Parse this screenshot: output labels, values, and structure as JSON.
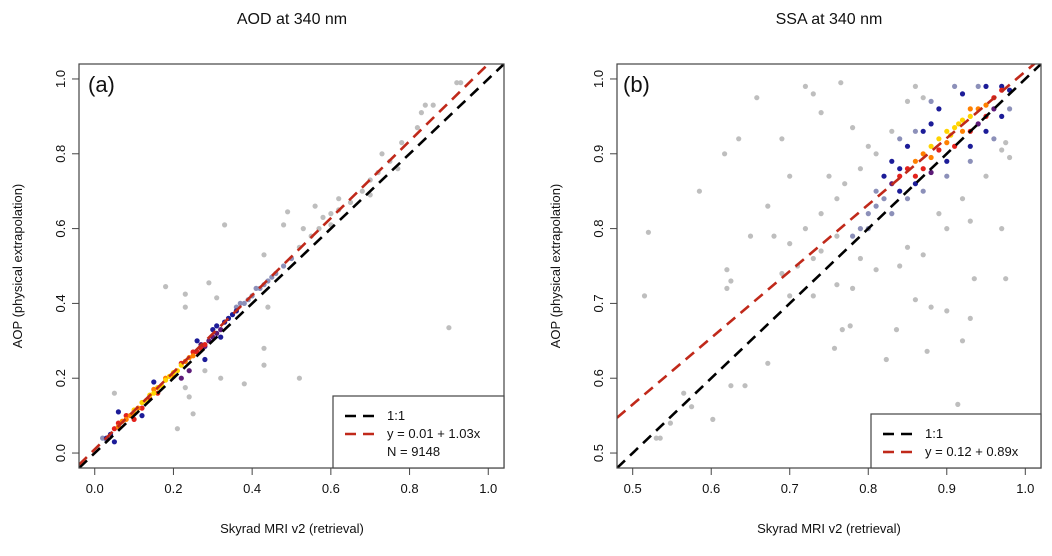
{
  "colors": {
    "density": [
      "#bebebe",
      "#8c90b9",
      "#1c1c98",
      "#5c1a78",
      "#e3211b",
      "#ff8000",
      "#ffd400"
    ],
    "line_1to1": "#000000",
    "line_fit": "#c0291a"
  },
  "chart_data": [
    {
      "type": "scatter",
      "title": "AOD at 340 nm",
      "panel_label": "(a)",
      "xlabel": "Skyrad MRI v2 (retrieval)",
      "ylabel": "AOP (physical extrapolation)",
      "xlim": [
        -0.04,
        1.04
      ],
      "ylim": [
        -0.04,
        1.04
      ],
      "xticks": [
        "0.0",
        "0.2",
        "0.4",
        "0.6",
        "0.8",
        "1.0"
      ],
      "yticks": [
        "0.0",
        "0.2",
        "0.4",
        "0.6",
        "0.8",
        "1.0"
      ],
      "grid": false,
      "legend_position": "bottom-right",
      "lines": [
        {
          "label": "1:1",
          "intercept": 0,
          "slope": 1,
          "color": "#000000"
        },
        {
          "label": "y = 0.01 + 1.03x",
          "intercept": 0.01,
          "slope": 1.03,
          "color": "#c0291a"
        }
      ],
      "legend_note": "N = 9148",
      "points_xy_density": [
        [
          0.52,
          0.55,
          0
        ],
        [
          0.55,
          0.58,
          0
        ],
        [
          0.57,
          0.6,
          0
        ],
        [
          0.58,
          0.63,
          0
        ],
        [
          0.6,
          0.64,
          0
        ],
        [
          0.62,
          0.65,
          0
        ],
        [
          0.65,
          0.67,
          0
        ],
        [
          0.68,
          0.7,
          0
        ],
        [
          0.7,
          0.73,
          0
        ],
        [
          0.72,
          0.75,
          0
        ],
        [
          0.73,
          0.8,
          0
        ],
        [
          0.75,
          0.78,
          0
        ],
        [
          0.7,
          0.69,
          0
        ],
        [
          0.6,
          0.61,
          0
        ],
        [
          0.83,
          0.91,
          0
        ],
        [
          0.84,
          0.93,
          0
        ],
        [
          0.86,
          0.93,
          0
        ],
        [
          0.82,
          0.87,
          0
        ],
        [
          0.78,
          0.83,
          0
        ],
        [
          0.92,
          0.99,
          0
        ],
        [
          0.93,
          0.99,
          0
        ],
        [
          0.9,
          0.335,
          0
        ],
        [
          0.33,
          0.61,
          0
        ],
        [
          0.18,
          0.445,
          0
        ],
        [
          0.29,
          0.455,
          0
        ],
        [
          0.23,
          0.425,
          0
        ],
        [
          0.23,
          0.39,
          0
        ],
        [
          0.31,
          0.415,
          0
        ],
        [
          0.38,
          0.185,
          0
        ],
        [
          0.43,
          0.28,
          0
        ],
        [
          0.43,
          0.235,
          0
        ],
        [
          0.52,
          0.2,
          0
        ],
        [
          0.21,
          0.065,
          0
        ],
        [
          0.25,
          0.105,
          0
        ],
        [
          0.24,
          0.15,
          0
        ],
        [
          0.23,
          0.175,
          0
        ],
        [
          0.32,
          0.2,
          0
        ],
        [
          0.28,
          0.22,
          0
        ],
        [
          0.05,
          0.16,
          0
        ],
        [
          0.44,
          0.39,
          0
        ],
        [
          0.43,
          0.53,
          0
        ],
        [
          0.49,
          0.645,
          0
        ],
        [
          0.48,
          0.61,
          0
        ],
        [
          0.56,
          0.66,
          0
        ],
        [
          0.53,
          0.6,
          0
        ],
        [
          0.62,
          0.68,
          0
        ],
        [
          0.77,
          0.76,
          0
        ],
        [
          0.36,
          0.39,
          1
        ],
        [
          0.38,
          0.4,
          1
        ],
        [
          0.4,
          0.42,
          1
        ],
        [
          0.42,
          0.44,
          1
        ],
        [
          0.44,
          0.46,
          1
        ],
        [
          0.46,
          0.48,
          1
        ],
        [
          0.43,
          0.45,
          1
        ],
        [
          0.39,
          0.41,
          1
        ],
        [
          0.41,
          0.44,
          1
        ],
        [
          0.45,
          0.47,
          1
        ],
        [
          0.48,
          0.5,
          1
        ],
        [
          0.5,
          0.52,
          1
        ],
        [
          0.37,
          0.4,
          1
        ],
        [
          0.02,
          0.04,
          1
        ],
        [
          0.03,
          0.035,
          1
        ],
        [
          0.03,
          0.04,
          2
        ],
        [
          0.04,
          0.05,
          2
        ],
        [
          0.33,
          0.35,
          2
        ],
        [
          0.34,
          0.36,
          2
        ],
        [
          0.3,
          0.33,
          2
        ],
        [
          0.32,
          0.31,
          2
        ],
        [
          0.35,
          0.37,
          2
        ],
        [
          0.26,
          0.3,
          2
        ],
        [
          0.15,
          0.19,
          2
        ],
        [
          0.06,
          0.11,
          2
        ],
        [
          0.12,
          0.1,
          2
        ],
        [
          0.28,
          0.25,
          2
        ],
        [
          0.31,
          0.34,
          2
        ],
        [
          0.36,
          0.38,
          2
        ],
        [
          0.05,
          0.03,
          2
        ],
        [
          0.29,
          0.3,
          3
        ],
        [
          0.3,
          0.31,
          3
        ],
        [
          0.31,
          0.32,
          3
        ],
        [
          0.28,
          0.285,
          3
        ],
        [
          0.32,
          0.33,
          3
        ],
        [
          0.27,
          0.29,
          3
        ],
        [
          0.22,
          0.2,
          3
        ],
        [
          0.24,
          0.22,
          3
        ],
        [
          0.05,
          0.065,
          4
        ],
        [
          0.08,
          0.1,
          4
        ],
        [
          0.12,
          0.12,
          4
        ],
        [
          0.14,
          0.145,
          4
        ],
        [
          0.26,
          0.27,
          4
        ],
        [
          0.27,
          0.28,
          4
        ],
        [
          0.28,
          0.29,
          4
        ],
        [
          0.25,
          0.27,
          4
        ],
        [
          0.22,
          0.24,
          4
        ],
        [
          0.16,
          0.16,
          4
        ],
        [
          0.1,
          0.09,
          4
        ],
        [
          0.06,
          0.08,
          4
        ],
        [
          0.07,
          0.085,
          5
        ],
        [
          0.08,
          0.09,
          5
        ],
        [
          0.09,
          0.1,
          5
        ],
        [
          0.11,
          0.12,
          5
        ],
        [
          0.24,
          0.255,
          5
        ],
        [
          0.23,
          0.245,
          5
        ],
        [
          0.25,
          0.26,
          5
        ],
        [
          0.06,
          0.07,
          5
        ],
        [
          0.1,
          0.105,
          5
        ],
        [
          0.15,
          0.17,
          5
        ],
        [
          0.18,
          0.2,
          5
        ],
        [
          0.2,
          0.205,
          5
        ],
        [
          0.1,
          0.115,
          6
        ],
        [
          0.12,
          0.135,
          6
        ],
        [
          0.14,
          0.155,
          6
        ],
        [
          0.16,
          0.175,
          6
        ],
        [
          0.18,
          0.195,
          6
        ],
        [
          0.19,
          0.205,
          6
        ],
        [
          0.2,
          0.215,
          6
        ],
        [
          0.22,
          0.235,
          6
        ],
        [
          0.13,
          0.14,
          6
        ],
        [
          0.17,
          0.18,
          6
        ],
        [
          0.15,
          0.16,
          6
        ],
        [
          0.21,
          0.22,
          6
        ]
      ]
    },
    {
      "type": "scatter",
      "title": "SSA at 340 nm",
      "panel_label": "(b)",
      "xlabel": "Skyrad MRI v2 (retrieval)",
      "ylabel": "AOP (physical extrapolation)",
      "xlim": [
        0.48,
        1.02
      ],
      "ylim": [
        0.48,
        1.02
      ],
      "xticks": [
        "0.5",
        "0.6",
        "0.7",
        "0.8",
        "0.9",
        "1.0"
      ],
      "yticks": [
        "0.5",
        "0.6",
        "0.7",
        "0.8",
        "0.9",
        "1.0"
      ],
      "grid": false,
      "legend_position": "bottom-right",
      "lines": [
        {
          "label": "1:1",
          "intercept": 0,
          "slope": 1,
          "color": "#000000"
        },
        {
          "label": "y = 0.12 + 0.89x",
          "intercept": 0.12,
          "slope": 0.89,
          "color": "#c0291a"
        }
      ],
      "points_xy_density": [
        [
          0.52,
          0.795,
          0
        ],
        [
          0.515,
          0.71,
          0
        ],
        [
          0.585,
          0.85,
          0
        ],
        [
          0.617,
          0.9,
          0
        ],
        [
          0.635,
          0.92,
          0
        ],
        [
          0.69,
          0.92,
          0
        ],
        [
          0.658,
          0.975,
          0
        ],
        [
          0.72,
          0.99,
          0
        ],
        [
          0.73,
          0.98,
          0
        ],
        [
          0.765,
          0.995,
          0
        ],
        [
          0.74,
          0.955,
          0
        ],
        [
          0.78,
          0.935,
          0
        ],
        [
          0.8,
          0.91,
          0
        ],
        [
          0.75,
          0.87,
          0
        ],
        [
          0.7,
          0.87,
          0
        ],
        [
          0.672,
          0.83,
          0
        ],
        [
          0.65,
          0.79,
          0
        ],
        [
          0.68,
          0.79,
          0
        ],
        [
          0.7,
          0.78,
          0
        ],
        [
          0.72,
          0.8,
          0
        ],
        [
          0.74,
          0.82,
          0
        ],
        [
          0.76,
          0.84,
          0
        ],
        [
          0.77,
          0.86,
          0
        ],
        [
          0.79,
          0.88,
          0
        ],
        [
          0.81,
          0.9,
          0
        ],
        [
          0.83,
          0.93,
          0
        ],
        [
          0.85,
          0.97,
          0
        ],
        [
          0.86,
          0.99,
          0
        ],
        [
          0.87,
          0.975,
          0
        ],
        [
          0.62,
          0.745,
          0
        ],
        [
          0.625,
          0.73,
          0
        ],
        [
          0.62,
          0.72,
          0
        ],
        [
          0.69,
          0.74,
          0
        ],
        [
          0.71,
          0.75,
          0
        ],
        [
          0.73,
          0.76,
          0
        ],
        [
          0.7,
          0.71,
          0
        ],
        [
          0.73,
          0.71,
          0
        ],
        [
          0.76,
          0.725,
          0
        ],
        [
          0.78,
          0.72,
          0
        ],
        [
          0.81,
          0.745,
          0
        ],
        [
          0.84,
          0.75,
          0
        ],
        [
          0.85,
          0.775,
          0
        ],
        [
          0.87,
          0.765,
          0
        ],
        [
          0.86,
          0.705,
          0
        ],
        [
          0.88,
          0.695,
          0
        ],
        [
          0.9,
          0.69,
          0
        ],
        [
          0.93,
          0.68,
          0
        ],
        [
          0.92,
          0.65,
          0
        ],
        [
          0.935,
          0.733,
          0
        ],
        [
          0.975,
          0.733,
          0
        ],
        [
          0.777,
          0.67,
          0
        ],
        [
          0.767,
          0.665,
          0
        ],
        [
          0.757,
          0.64,
          0
        ],
        [
          0.823,
          0.625,
          0
        ],
        [
          0.875,
          0.636,
          0
        ],
        [
          0.836,
          0.665,
          0
        ],
        [
          0.672,
          0.62,
          0
        ],
        [
          0.625,
          0.59,
          0
        ],
        [
          0.643,
          0.59,
          0
        ],
        [
          0.602,
          0.545,
          0
        ],
        [
          0.565,
          0.58,
          0
        ],
        [
          0.575,
          0.562,
          0
        ],
        [
          0.548,
          0.54,
          0
        ],
        [
          0.53,
          0.52,
          0
        ],
        [
          0.535,
          0.52,
          0
        ],
        [
          0.914,
          0.565,
          0
        ],
        [
          0.92,
          0.84,
          0
        ],
        [
          0.93,
          0.81,
          0
        ],
        [
          0.9,
          0.8,
          0
        ],
        [
          0.89,
          0.82,
          0
        ],
        [
          0.95,
          0.87,
          0
        ],
        [
          0.98,
          0.895,
          0
        ],
        [
          0.975,
          0.915,
          0
        ],
        [
          0.97,
          0.905,
          0
        ],
        [
          0.97,
          0.8,
          0
        ],
        [
          0.79,
          0.76,
          0
        ],
        [
          0.76,
          0.79,
          0
        ],
        [
          0.74,
          0.77,
          0
        ],
        [
          0.8,
          0.82,
          1
        ],
        [
          0.81,
          0.85,
          1
        ],
        [
          0.79,
          0.8,
          1
        ],
        [
          0.82,
          0.84,
          1
        ],
        [
          0.83,
          0.82,
          1
        ],
        [
          0.85,
          0.84,
          1
        ],
        [
          0.87,
          0.85,
          1
        ],
        [
          0.9,
          0.87,
          1
        ],
        [
          0.93,
          0.89,
          1
        ],
        [
          0.96,
          0.92,
          1
        ],
        [
          0.98,
          0.96,
          1
        ],
        [
          0.86,
          0.93,
          1
        ],
        [
          0.84,
          0.92,
          1
        ],
        [
          0.88,
          0.97,
          1
        ],
        [
          0.91,
          0.99,
          1
        ],
        [
          0.94,
          0.99,
          1
        ],
        [
          0.78,
          0.79,
          1
        ],
        [
          0.8,
          0.8,
          1
        ],
        [
          0.81,
          0.83,
          1
        ],
        [
          0.82,
          0.87,
          2
        ],
        [
          0.83,
          0.89,
          2
        ],
        [
          0.85,
          0.91,
          2
        ],
        [
          0.87,
          0.93,
          2
        ],
        [
          0.89,
          0.96,
          2
        ],
        [
          0.92,
          0.98,
          2
        ],
        [
          0.95,
          0.99,
          2
        ],
        [
          0.97,
          0.99,
          2
        ],
        [
          0.98,
          0.985,
          2
        ],
        [
          0.84,
          0.85,
          2
        ],
        [
          0.86,
          0.86,
          2
        ],
        [
          0.9,
          0.89,
          2
        ],
        [
          0.93,
          0.91,
          2
        ],
        [
          0.95,
          0.93,
          2
        ],
        [
          0.97,
          0.95,
          2
        ],
        [
          0.88,
          0.94,
          2
        ],
        [
          0.84,
          0.88,
          2
        ],
        [
          0.83,
          0.86,
          3
        ],
        [
          0.96,
          0.96,
          3
        ],
        [
          0.94,
          0.94,
          3
        ],
        [
          0.88,
          0.875,
          3
        ],
        [
          0.85,
          0.88,
          4
        ],
        [
          0.84,
          0.87,
          4
        ],
        [
          0.96,
          0.975,
          4
        ],
        [
          0.97,
          0.985,
          4
        ],
        [
          0.87,
          0.88,
          4
        ],
        [
          0.91,
          0.91,
          4
        ],
        [
          0.95,
          0.95,
          4
        ],
        [
          0.89,
          0.905,
          4
        ],
        [
          0.86,
          0.87,
          4
        ],
        [
          0.93,
          0.93,
          4
        ],
        [
          0.87,
          0.9,
          5
        ],
        [
          0.86,
          0.89,
          5
        ],
        [
          0.94,
          0.96,
          5
        ],
        [
          0.95,
          0.965,
          5
        ],
        [
          0.9,
          0.915,
          5
        ],
        [
          0.92,
          0.93,
          5
        ],
        [
          0.88,
          0.895,
          5
        ],
        [
          0.93,
          0.96,
          5
        ],
        [
          0.89,
          0.92,
          6
        ],
        [
          0.9,
          0.93,
          6
        ],
        [
          0.91,
          0.935,
          6
        ],
        [
          0.92,
          0.945,
          6
        ],
        [
          0.93,
          0.95,
          6
        ],
        [
          0.88,
          0.91,
          6
        ],
        [
          0.915,
          0.94,
          6
        ],
        [
          0.905,
          0.925,
          6
        ]
      ]
    }
  ]
}
